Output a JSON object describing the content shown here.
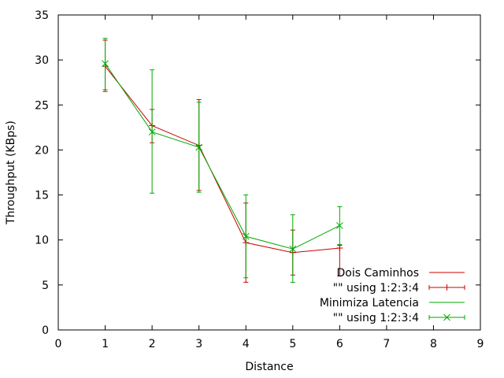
{
  "chart_data": {
    "type": "line",
    "title": "",
    "xlabel": "Distance",
    "ylabel": "Throughput (KBps)",
    "xlim": [
      0,
      9
    ],
    "ylim": [
      0,
      35
    ],
    "xticks": [
      0,
      1,
      2,
      3,
      4,
      5,
      6,
      7,
      8,
      9
    ],
    "yticks": [
      0,
      5,
      10,
      15,
      20,
      25,
      30,
      35
    ],
    "grid": false,
    "legend_position": "bottom-right",
    "series": [
      {
        "name": "Dois Caminhos",
        "errorbar_name": "\"\" using 1:2:3:4",
        "color": "#cc0000",
        "marker": "plus",
        "points": [
          {
            "x": 1,
            "y": 29.3,
            "ylow": 26.5,
            "yhigh": 32.2
          },
          {
            "x": 2,
            "y": 22.7,
            "ylow": 20.8,
            "yhigh": 24.5
          },
          {
            "x": 3,
            "y": 20.5,
            "ylow": 15.5,
            "yhigh": 25.6
          },
          {
            "x": 4,
            "y": 9.7,
            "ylow": 5.3,
            "yhigh": 14.1
          },
          {
            "x": 5,
            "y": 8.6,
            "ylow": 6.1,
            "yhigh": 11.1
          },
          {
            "x": 6,
            "y": 9.1,
            "ylow": 6.0,
            "yhigh": 9.4
          }
        ]
      },
      {
        "name": "Minimiza Latencia",
        "errorbar_name": "\"\" using 1:2:3:4",
        "color": "#00aa00",
        "marker": "cross",
        "points": [
          {
            "x": 1,
            "y": 29.6,
            "ylow": 26.7,
            "yhigh": 32.4
          },
          {
            "x": 2,
            "y": 22.0,
            "ylow": 15.2,
            "yhigh": 28.9
          },
          {
            "x": 3,
            "y": 20.3,
            "ylow": 15.3,
            "yhigh": 25.3
          },
          {
            "x": 4,
            "y": 10.4,
            "ylow": 5.8,
            "yhigh": 15.0
          },
          {
            "x": 5,
            "y": 9.0,
            "ylow": 5.3,
            "yhigh": 12.8
          },
          {
            "x": 6,
            "y": 11.6,
            "ylow": 9.5,
            "yhigh": 13.7
          }
        ]
      }
    ]
  }
}
